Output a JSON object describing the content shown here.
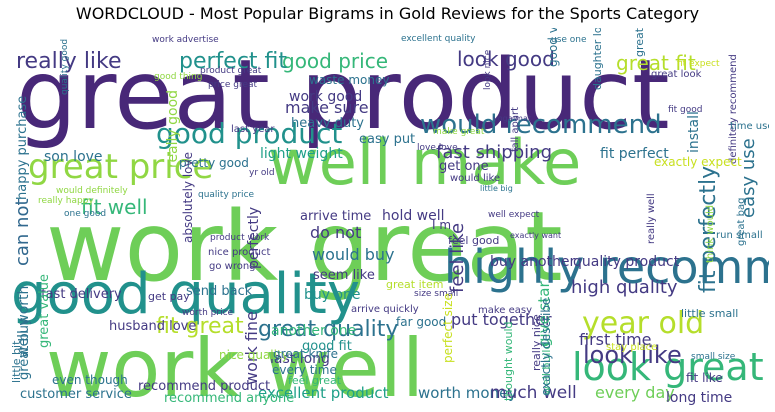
{
  "title": "WORDCLOUD - Most Popular Bigrams in Gold Reviews for the Sports Category",
  "colors": {
    "dark_purple": "#482878",
    "purple": "#443a83",
    "blue": "#3b528b",
    "steel": "#31688e",
    "teal_blue": "#2c728e",
    "teal": "#21918c",
    "green_teal": "#1fa088",
    "green": "#35b779",
    "light_green": "#6ece58",
    "yellow_green": "#90d743",
    "lime": "#b5de2b",
    "yellow": "#c8e020"
  },
  "words": [
    {
      "text": "great product",
      "color": "dark_purple"
    },
    {
      "text": "work great",
      "color": "light_green"
    },
    {
      "text": "work well",
      "color": "light_green"
    },
    {
      "text": "well make",
      "color": "light_green"
    },
    {
      "text": "good quality",
      "color": "teal"
    },
    {
      "text": "highly recommend",
      "color": "teal_blue"
    },
    {
      "text": "good product",
      "color": "teal"
    },
    {
      "text": "great price",
      "color": "yellow_green"
    },
    {
      "text": "look great",
      "color": "green"
    },
    {
      "text": "year old",
      "color": "lime"
    },
    {
      "text": "would recommend",
      "color": "teal_blue"
    },
    {
      "text": "look good",
      "color": "purple"
    },
    {
      "text": "good price",
      "color": "green"
    },
    {
      "text": "really like",
      "color": "purple"
    },
    {
      "text": "perfect fit",
      "color": "teal"
    },
    {
      "text": "great fit",
      "color": "lime"
    },
    {
      "text": "fit perfectly",
      "color": "teal_blue"
    },
    {
      "text": "fit great",
      "color": "lime"
    },
    {
      "text": "great quality",
      "color": "teal_blue"
    },
    {
      "text": "high quality",
      "color": "purple"
    },
    {
      "text": "look like",
      "color": "purple"
    },
    {
      "text": "fit well",
      "color": "green"
    },
    {
      "text": "easy use",
      "color": "teal_blue"
    },
    {
      "text": "fast shipping",
      "color": "purple"
    },
    {
      "text": "make sure",
      "color": "purple"
    },
    {
      "text": "feel like",
      "color": "purple"
    },
    {
      "text": "would buy",
      "color": "teal_blue"
    },
    {
      "text": "put together",
      "color": "purple"
    },
    {
      "text": "first time",
      "color": "purple"
    },
    {
      "text": "can not",
      "color": "steel"
    },
    {
      "text": "do not",
      "color": "purple"
    },
    {
      "text": "work fine",
      "color": "purple"
    },
    {
      "text": "son love",
      "color": "teal_blue"
    },
    {
      "text": "fit perfect",
      "color": "teal_blue"
    },
    {
      "text": "light weight",
      "color": "green_teal"
    },
    {
      "text": "install",
      "color": "teal_blue"
    },
    {
      "text": "customer service",
      "color": "teal_blue"
    },
    {
      "text": "excellent product",
      "color": "green_teal"
    },
    {
      "text": "worth money",
      "color": "teal_blue"
    },
    {
      "text": "much well",
      "color": "purple"
    },
    {
      "text": "every day",
      "color": "light_green"
    },
    {
      "text": "long time",
      "color": "purple"
    },
    {
      "text": "last long",
      "color": "purple"
    },
    {
      "text": "good fit",
      "color": "teal"
    },
    {
      "text": "feel great",
      "color": "green"
    },
    {
      "text": "another one",
      "color": "green"
    },
    {
      "text": "husband love",
      "color": "purple"
    },
    {
      "text": "send back",
      "color": "teal_blue"
    },
    {
      "text": "buy one",
      "color": "teal"
    },
    {
      "text": "get one",
      "color": "purple"
    },
    {
      "text": "seem like",
      "color": "purple"
    },
    {
      "text": "buy another",
      "color": "purple"
    },
    {
      "text": "quality product",
      "color": "purple"
    },
    {
      "text": "hold well",
      "color": "purple"
    },
    {
      "text": "arrive time",
      "color": "purple"
    },
    {
      "text": "well worth",
      "color": "teal_blue"
    },
    {
      "text": "great buy",
      "color": "teal_blue"
    },
    {
      "text": "happy purchase",
      "color": "teal_blue"
    },
    {
      "text": "fast delivery",
      "color": "purple"
    },
    {
      "text": "great value",
      "color": "green"
    },
    {
      "text": "get pay",
      "color": "purple"
    },
    {
      "text": "work good",
      "color": "purple"
    },
    {
      "text": "heavy duty",
      "color": "teal_blue"
    },
    {
      "text": "easy put",
      "color": "teal_blue"
    },
    {
      "text": "pretty good",
      "color": "teal_blue"
    },
    {
      "text": "waste money",
      "color": "teal_blue"
    },
    {
      "text": "good value",
      "color": "teal_blue"
    },
    {
      "text": "great deal",
      "color": "teal_blue"
    },
    {
      "text": "daughter love",
      "color": "teal_blue"
    },
    {
      "text": "really good",
      "color": "yellow_green"
    },
    {
      "text": "make great",
      "color": "yellow_green"
    },
    {
      "text": "perfectly",
      "color": "purple"
    },
    {
      "text": "absolutely love",
      "color": "purple"
    },
    {
      "text": "give star",
      "color": "green"
    },
    {
      "text": "really nice",
      "color": "purple"
    },
    {
      "text": "well build",
      "color": "green"
    },
    {
      "text": "exactly describe",
      "color": "teal_blue"
    },
    {
      "text": "thought would",
      "color": "green"
    },
    {
      "text": "recommend product",
      "color": "purple"
    },
    {
      "text": "recommend anyone",
      "color": "green"
    },
    {
      "text": "even though",
      "color": "teal_blue"
    },
    {
      "text": "nice quality",
      "color": "yellow_green"
    },
    {
      "text": "great knife",
      "color": "teal_blue"
    },
    {
      "text": "every time",
      "color": "teal_blue"
    },
    {
      "text": "far good",
      "color": "teal_blue"
    },
    {
      "text": "great item",
      "color": "lime"
    },
    {
      "text": "feel good",
      "color": "purple"
    },
    {
      "text": "I m",
      "color": "purple"
    },
    {
      "text": "make easy",
      "color": "purple"
    },
    {
      "text": "little small",
      "color": "teal_blue"
    },
    {
      "text": "stay place",
      "color": "yellow"
    },
    {
      "text": "fit like",
      "color": "purple"
    },
    {
      "text": "arrive quickly",
      "color": "purple"
    },
    {
      "text": "size small",
      "color": "purple"
    },
    {
      "text": "perfect size",
      "color": "yellow"
    },
    {
      "text": "little bit",
      "color": "teal_blue"
    },
    {
      "text": "worth price",
      "color": "purple"
    },
    {
      "text": "product work",
      "color": "purple"
    },
    {
      "text": "nice product",
      "color": "purple"
    },
    {
      "text": "go wrong",
      "color": "purple"
    },
    {
      "text": "well expect",
      "color": "purple"
    },
    {
      "text": "exactly want",
      "color": "purple"
    },
    {
      "text": "really well",
      "color": "purple"
    },
    {
      "text": "run small",
      "color": "teal_blue"
    },
    {
      "text": "great bag",
      "color": "teal_blue"
    },
    {
      "text": "think would",
      "color": "yellow_green"
    },
    {
      "text": "definitely recommend",
      "color": "purple"
    },
    {
      "text": "exactly expect",
      "color": "yellow"
    },
    {
      "text": "time use",
      "color": "teal_blue"
    },
    {
      "text": "fit good",
      "color": "purple"
    },
    {
      "text": "fit expect",
      "color": "yellow"
    },
    {
      "text": "great look",
      "color": "purple"
    },
    {
      "text": "fall apart",
      "color": "purple"
    },
    {
      "text": "yoga mat",
      "color": "purple"
    },
    {
      "text": "love love",
      "color": "purple"
    },
    {
      "text": "would like",
      "color": "purple"
    },
    {
      "text": "little big",
      "color": "teal_blue"
    },
    {
      "text": "yr old",
      "color": "purple"
    },
    {
      "text": "last year",
      "color": "purple"
    },
    {
      "text": "quality price",
      "color": "teal_blue"
    },
    {
      "text": "good thing",
      "color": "yellow_green"
    },
    {
      "text": "product great",
      "color": "purple"
    },
    {
      "text": "work advertise",
      "color": "purple"
    },
    {
      "text": "excellent quality",
      "color": "teal_blue"
    },
    {
      "text": "use one",
      "color": "teal_blue"
    },
    {
      "text": "look nice",
      "color": "purple"
    },
    {
      "text": "quality good",
      "color": "teal_blue"
    },
    {
      "text": "really happy",
      "color": "yellow_green"
    },
    {
      "text": "would definitely",
      "color": "yellow_green"
    },
    {
      "text": "one good",
      "color": "teal_blue"
    },
    {
      "text": "price great",
      "color": "purple"
    },
    {
      "text": "small size",
      "color": "teal_blue"
    }
  ]
}
